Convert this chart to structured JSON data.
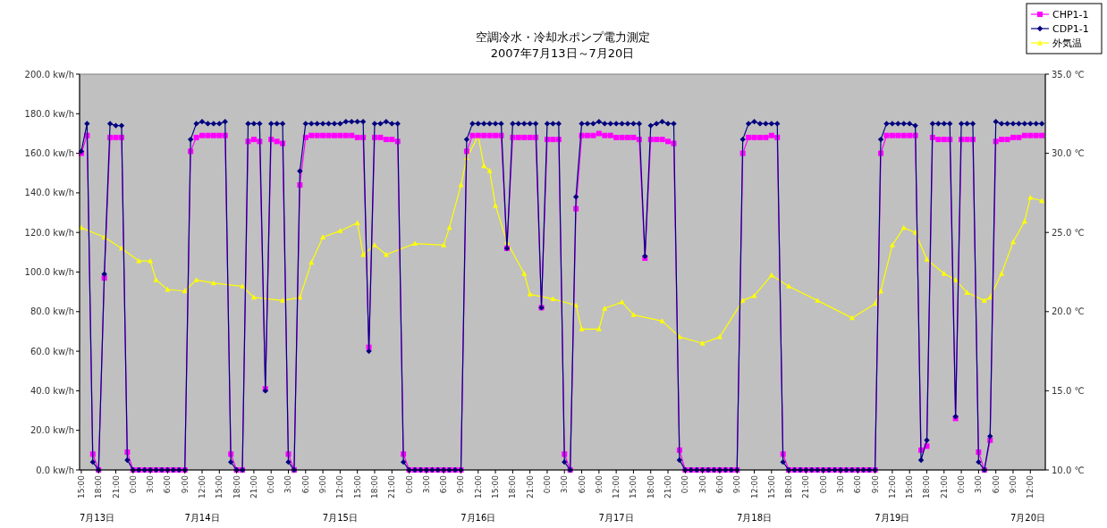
{
  "chart_data": {
    "type": "line",
    "title": "空調冷水・冷却水ポンプ電力測定",
    "subtitle": "2007年7月13日～7月20日",
    "legend": "top right",
    "x": [
      "2007-07-13T15:00",
      "2007-07-13T16:00",
      "2007-07-13T17:00",
      "2007-07-13T18:00",
      "2007-07-13T19:00",
      "2007-07-13T20:00",
      "2007-07-13T21:00",
      "2007-07-13T22:00",
      "2007-07-13T23:00",
      "2007-07-14T00:00",
      "2007-07-14T01:00",
      "2007-07-14T02:00",
      "2007-07-14T03:00",
      "2007-07-14T04:00",
      "2007-07-14T05:00",
      "2007-07-14T06:00",
      "2007-07-14T07:00",
      "2007-07-14T08:00",
      "2007-07-14T09:00",
      "2007-07-14T10:00",
      "2007-07-14T11:00",
      "2007-07-14T12:00",
      "2007-07-14T13:00",
      "2007-07-14T14:00",
      "2007-07-14T15:00",
      "2007-07-14T16:00",
      "2007-07-14T17:00",
      "2007-07-14T18:00",
      "2007-07-14T19:00",
      "2007-07-14T20:00",
      "2007-07-14T21:00",
      "2007-07-14T22:00",
      "2007-07-14T23:00",
      "2007-07-15T00:00",
      "2007-07-15T01:00",
      "2007-07-15T02:00",
      "2007-07-15T03:00",
      "2007-07-15T04:00",
      "2007-07-15T05:00",
      "2007-07-15T06:00",
      "2007-07-15T07:00",
      "2007-07-15T08:00",
      "2007-07-15T09:00",
      "2007-07-15T10:00",
      "2007-07-15T11:00",
      "2007-07-15T12:00",
      "2007-07-15T13:00",
      "2007-07-15T14:00",
      "2007-07-15T15:00",
      "2007-07-15T16:00",
      "2007-07-15T17:00",
      "2007-07-15T18:00",
      "2007-07-15T19:00",
      "2007-07-15T20:00",
      "2007-07-15T21:00",
      "2007-07-15T22:00",
      "2007-07-15T23:00",
      "2007-07-16T00:00",
      "2007-07-16T01:00",
      "2007-07-16T02:00",
      "2007-07-16T03:00",
      "2007-07-16T04:00",
      "2007-07-16T05:00",
      "2007-07-16T06:00",
      "2007-07-16T07:00",
      "2007-07-16T08:00",
      "2007-07-16T09:00",
      "2007-07-16T10:00",
      "2007-07-16T11:00",
      "2007-07-16T12:00",
      "2007-07-16T13:00",
      "2007-07-16T14:00",
      "2007-07-16T15:00",
      "2007-07-16T16:00",
      "2007-07-16T17:00",
      "2007-07-16T18:00",
      "2007-07-16T19:00",
      "2007-07-16T20:00",
      "2007-07-16T21:00",
      "2007-07-16T22:00",
      "2007-07-16T23:00",
      "2007-07-17T00:00",
      "2007-07-17T01:00",
      "2007-07-17T02:00",
      "2007-07-17T03:00",
      "2007-07-17T04:00",
      "2007-07-17T05:00",
      "2007-07-17T06:00",
      "2007-07-17T07:00",
      "2007-07-17T08:00",
      "2007-07-17T09:00",
      "2007-07-17T10:00",
      "2007-07-17T11:00",
      "2007-07-17T12:00",
      "2007-07-17T13:00",
      "2007-07-17T14:00",
      "2007-07-17T15:00",
      "2007-07-17T16:00",
      "2007-07-17T17:00",
      "2007-07-17T18:00",
      "2007-07-17T19:00",
      "2007-07-17T20:00",
      "2007-07-17T21:00",
      "2007-07-17T22:00",
      "2007-07-17T23:00",
      "2007-07-18T00:00",
      "2007-07-18T01:00",
      "2007-07-18T02:00",
      "2007-07-18T03:00",
      "2007-07-18T04:00",
      "2007-07-18T05:00",
      "2007-07-18T06:00",
      "2007-07-18T07:00",
      "2007-07-18T08:00",
      "2007-07-18T09:00",
      "2007-07-18T10:00",
      "2007-07-18T11:00",
      "2007-07-18T12:00",
      "2007-07-18T13:00",
      "2007-07-18T14:00",
      "2007-07-18T15:00",
      "2007-07-18T16:00",
      "2007-07-18T17:00",
      "2007-07-18T18:00",
      "2007-07-18T19:00",
      "2007-07-18T20:00",
      "2007-07-18T21:00",
      "2007-07-18T22:00",
      "2007-07-18T23:00",
      "2007-07-19T00:00",
      "2007-07-19T01:00",
      "2007-07-19T02:00",
      "2007-07-19T03:00",
      "2007-07-19T04:00",
      "2007-07-19T05:00",
      "2007-07-19T06:00",
      "2007-07-19T07:00",
      "2007-07-19T08:00",
      "2007-07-19T09:00",
      "2007-07-19T10:00",
      "2007-07-19T11:00",
      "2007-07-19T12:00",
      "2007-07-19T13:00",
      "2007-07-19T14:00",
      "2007-07-19T15:00",
      "2007-07-19T16:00",
      "2007-07-19T17:00",
      "2007-07-19T18:00",
      "2007-07-19T19:00",
      "2007-07-19T20:00",
      "2007-07-19T21:00",
      "2007-07-19T22:00",
      "2007-07-19T23:00",
      "2007-07-20T00:00",
      "2007-07-20T01:00",
      "2007-07-20T02:00",
      "2007-07-20T03:00",
      "2007-07-20T04:00",
      "2007-07-20T05:00",
      "2007-07-20T06:00",
      "2007-07-20T07:00",
      "2007-07-20T08:00",
      "2007-07-20T09:00",
      "2007-07-20T10:00",
      "2007-07-20T11:00",
      "2007-07-20T12:00",
      "2007-07-20T13:00",
      "2007-07-20T14:00"
    ],
    "series": [
      {
        "name": "CHP1-1",
        "color": "#ff00ff",
        "marker": "square",
        "values": [
          160,
          169,
          8,
          0,
          97,
          168,
          168,
          168,
          9,
          0,
          0,
          0,
          0,
          0,
          0,
          0,
          0,
          0,
          0,
          161,
          168,
          169,
          169,
          169,
          169,
          169,
          8,
          0,
          0,
          166,
          167,
          166,
          41,
          167,
          166,
          165,
          8,
          0,
          144,
          168,
          169,
          169,
          169,
          169,
          169,
          169,
          169,
          169,
          168,
          168,
          62,
          168,
          168,
          167,
          167,
          166,
          8,
          0,
          0,
          0,
          0,
          0,
          0,
          0,
          0,
          0,
          0,
          161,
          169,
          169,
          169,
          169,
          169,
          169,
          112,
          168,
          168,
          168,
          168,
          168,
          82,
          167,
          167,
          167,
          8,
          0,
          132,
          169,
          169,
          169,
          170,
          169,
          169,
          168,
          168,
          168,
          168,
          167,
          107,
          167,
          167,
          167,
          166,
          165,
          10,
          0,
          0,
          0,
          0,
          0,
          0,
          0,
          0,
          0,
          0,
          160,
          168,
          168,
          168,
          168,
          169,
          168,
          8,
          0,
          0,
          0,
          0,
          0,
          0,
          0,
          0,
          0,
          0,
          0,
          0,
          0,
          0,
          0,
          0,
          160,
          169,
          169,
          169,
          169,
          169,
          169,
          10,
          12,
          168,
          167,
          167,
          167,
          26,
          167,
          167,
          167,
          9,
          0,
          15,
          166,
          167,
          167,
          168,
          168,
          169,
          169,
          169,
          169
        ]
      },
      {
        "name": "CDP1-1",
        "color": "#000080",
        "marker": "diamond",
        "values": [
          161,
          175,
          4,
          0,
          99,
          175,
          174,
          174,
          5,
          0,
          0,
          0,
          0,
          0,
          0,
          0,
          0,
          0,
          0,
          167,
          175,
          176,
          175,
          175,
          175,
          176,
          4,
          0,
          0,
          175,
          175,
          175,
          40,
          175,
          175,
          175,
          4,
          0,
          151,
          175,
          175,
          175,
          175,
          175,
          175,
          175,
          176,
          176,
          176,
          176,
          60,
          175,
          175,
          176,
          175,
          175,
          4,
          0,
          0,
          0,
          0,
          0,
          0,
          0,
          0,
          0,
          0,
          167,
          175,
          175,
          175,
          175,
          175,
          175,
          112,
          175,
          175,
          175,
          175,
          175,
          82,
          175,
          175,
          175,
          4,
          0,
          138,
          175,
          175,
          175,
          176,
          175,
          175,
          175,
          175,
          175,
          175,
          175,
          108,
          174,
          175,
          176,
          175,
          175,
          5,
          0,
          0,
          0,
          0,
          0,
          0,
          0,
          0,
          0,
          0,
          167,
          175,
          176,
          175,
          175,
          175,
          175,
          4,
          0,
          0,
          0,
          0,
          0,
          0,
          0,
          0,
          0,
          0,
          0,
          0,
          0,
          0,
          0,
          0,
          167,
          175,
          175,
          175,
          175,
          175,
          174,
          5,
          15,
          175,
          175,
          175,
          175,
          27,
          175,
          175,
          175,
          4,
          0,
          17,
          176,
          175,
          175,
          175,
          175,
          175,
          175,
          175,
          175
        ]
      },
      {
        "name": "外気温",
        "color": "#ffff00",
        "marker": "triangle",
        "axis": "y2",
        "x": [
          "2007-07-13T15:00",
          "2007-07-13T19:00",
          "2007-07-13T22:00",
          "2007-07-14T01:00",
          "2007-07-14T03:00",
          "2007-07-14T04:00",
          "2007-07-14T06:00",
          "2007-07-14T09:00",
          "2007-07-14T11:00",
          "2007-07-14T14:00",
          "2007-07-14T19:00",
          "2007-07-14T21:00",
          "2007-07-15T02:00",
          "2007-07-15T05:00",
          "2007-07-15T07:00",
          "2007-07-15T09:00",
          "2007-07-15T12:00",
          "2007-07-15T15:00",
          "2007-07-15T16:00",
          "2007-07-15T18:00",
          "2007-07-15T20:00",
          "2007-07-16T01:00",
          "2007-07-16T06:00",
          "2007-07-16T07:00",
          "2007-07-16T09:00",
          "2007-07-16T10:00",
          "2007-07-16T12:00",
          "2007-07-16T13:00",
          "2007-07-16T14:00",
          "2007-07-16T15:00",
          "2007-07-16T17:00",
          "2007-07-16T20:00",
          "2007-07-16T21:00",
          "2007-07-17T01:00",
          "2007-07-17T05:00",
          "2007-07-17T06:00",
          "2007-07-17T09:00",
          "2007-07-17T10:00",
          "2007-07-17T13:00",
          "2007-07-17T15:00",
          "2007-07-17T20:00",
          "2007-07-17T23:00",
          "2007-07-18T03:00",
          "2007-07-18T06:00",
          "2007-07-18T10:00",
          "2007-07-18T12:00",
          "2007-07-18T15:00",
          "2007-07-18T18:00",
          "2007-07-18T23:00",
          "2007-07-19T05:00",
          "2007-07-19T09:00",
          "2007-07-19T10:00",
          "2007-07-19T12:00",
          "2007-07-19T14:00",
          "2007-07-19T16:00",
          "2007-07-19T18:00",
          "2007-07-19T21:00",
          "2007-07-19T23:00",
          "2007-07-20T01:00",
          "2007-07-20T04:00",
          "2007-07-20T05:00",
          "2007-07-20T07:00",
          "2007-07-20T09:00",
          "2007-07-20T11:00",
          "2007-07-20T12:00",
          "2007-07-20T14:00"
        ],
        "values": [
          25.3,
          24.7,
          24.0,
          23.2,
          23.2,
          22.0,
          21.4,
          21.3,
          22.0,
          21.8,
          21.6,
          20.9,
          20.7,
          20.9,
          23.1,
          24.7,
          25.1,
          25.6,
          23.6,
          24.2,
          23.6,
          24.3,
          24.2,
          25.3,
          28.0,
          29.7,
          31.1,
          29.2,
          28.9,
          26.7,
          24.4,
          22.4,
          21.1,
          20.8,
          20.4,
          18.9,
          18.9,
          20.2,
          20.6,
          19.8,
          19.4,
          18.4,
          18.0,
          18.4,
          20.7,
          21.0,
          22.3,
          21.6,
          20.7,
          19.6,
          20.5,
          21.3,
          24.2,
          25.3,
          25.0,
          23.3,
          22.4,
          22.0,
          21.2,
          20.7,
          20.9,
          22.4,
          24.4,
          25.7,
          27.2,
          27.0
        ]
      }
    ],
    "xlim": [
      "2007-07-13T14:42",
      "2007-07-20T14:36"
    ],
    "xticks": [
      {
        "value": "2007-07-13T15:00",
        "label": "15:00"
      },
      {
        "value": "2007-07-13T18:00",
        "label": "18:00"
      },
      {
        "value": "2007-07-13T21:00",
        "label": "21:00"
      },
      {
        "value": "2007-07-14T00:00",
        "label": "0:00"
      },
      {
        "value": "2007-07-14T03:00",
        "label": "3:00"
      },
      {
        "value": "2007-07-14T06:00",
        "label": "6:00"
      },
      {
        "value": "2007-07-14T09:00",
        "label": "9:00"
      },
      {
        "value": "2007-07-14T12:00",
        "label": "12:00"
      },
      {
        "value": "2007-07-14T15:00",
        "label": "15:00"
      },
      {
        "value": "2007-07-14T18:00",
        "label": "18:00"
      },
      {
        "value": "2007-07-14T21:00",
        "label": "21:00"
      },
      {
        "value": "2007-07-15T00:00",
        "label": "0:00"
      },
      {
        "value": "2007-07-15T03:00",
        "label": "3:00"
      },
      {
        "value": "2007-07-15T06:00",
        "label": "6:00"
      },
      {
        "value": "2007-07-15T09:00",
        "label": "9:00"
      },
      {
        "value": "2007-07-15T12:00",
        "label": "12:00"
      },
      {
        "value": "2007-07-15T15:00",
        "label": "15:00"
      },
      {
        "value": "2007-07-15T18:00",
        "label": "18:00"
      },
      {
        "value": "2007-07-15T21:00",
        "label": "21:00"
      },
      {
        "value": "2007-07-16T00:00",
        "label": "0:00"
      },
      {
        "value": "2007-07-16T03:00",
        "label": "3:00"
      },
      {
        "value": "2007-07-16T06:00",
        "label": "6:00"
      },
      {
        "value": "2007-07-16T09:00",
        "label": "9:00"
      },
      {
        "value": "2007-07-16T12:00",
        "label": "12:00"
      },
      {
        "value": "2007-07-16T15:00",
        "label": "15:00"
      },
      {
        "value": "2007-07-16T18:00",
        "label": "18:00"
      },
      {
        "value": "2007-07-16T21:00",
        "label": "21:00"
      },
      {
        "value": "2007-07-17T00:00",
        "label": "0:00"
      },
      {
        "value": "2007-07-17T03:00",
        "label": "3:00"
      },
      {
        "value": "2007-07-17T06:00",
        "label": "6:00"
      },
      {
        "value": "2007-07-17T09:00",
        "label": "9:00"
      },
      {
        "value": "2007-07-17T12:00",
        "label": "12:00"
      },
      {
        "value": "2007-07-17T15:00",
        "label": "15:00"
      },
      {
        "value": "2007-07-17T18:00",
        "label": "18:00"
      },
      {
        "value": "2007-07-17T21:00",
        "label": "21:00"
      },
      {
        "value": "2007-07-18T00:00",
        "label": "0:00"
      },
      {
        "value": "2007-07-18T03:00",
        "label": "3:00"
      },
      {
        "value": "2007-07-18T06:00",
        "label": "6:00"
      },
      {
        "value": "2007-07-18T09:00",
        "label": "9:00"
      },
      {
        "value": "2007-07-18T12:00",
        "label": "12:00"
      },
      {
        "value": "2007-07-18T15:00",
        "label": "15:00"
      },
      {
        "value": "2007-07-18T18:00",
        "label": "18:00"
      },
      {
        "value": "2007-07-18T21:00",
        "label": "21:00"
      },
      {
        "value": "2007-07-19T00:00",
        "label": "0:00"
      },
      {
        "value": "2007-07-19T03:00",
        "label": "3:00"
      },
      {
        "value": "2007-07-19T06:00",
        "label": "6:00"
      },
      {
        "value": "2007-07-19T09:00",
        "label": "9:00"
      },
      {
        "value": "2007-07-19T12:00",
        "label": "12:00"
      },
      {
        "value": "2007-07-19T15:00",
        "label": "15:00"
      },
      {
        "value": "2007-07-19T18:00",
        "label": "18:00"
      },
      {
        "value": "2007-07-19T21:00",
        "label": "21:00"
      },
      {
        "value": "2007-07-20T00:00",
        "label": "0:00"
      },
      {
        "value": "2007-07-20T03:00",
        "label": "3:00"
      },
      {
        "value": "2007-07-20T06:00",
        "label": "6:00"
      },
      {
        "value": "2007-07-20T09:00",
        "label": "9:00"
      },
      {
        "value": "2007-07-20T12:00",
        "label": "12:00"
      }
    ],
    "ylim": [
      0,
      200
    ],
    "yticks": [
      {
        "value": 0,
        "label": "0.0 kw/h"
      },
      {
        "value": 20,
        "label": "20.0 kw/h"
      },
      {
        "value": 40,
        "label": "40.0 kw/h"
      },
      {
        "value": 60,
        "label": "60.0 kw/h"
      },
      {
        "value": 80,
        "label": "80.0 kw/h"
      },
      {
        "value": 100,
        "label": "100.0 kw/h"
      },
      {
        "value": 120,
        "label": "120.0 kw/h"
      },
      {
        "value": 140,
        "label": "140.0 kw/h"
      },
      {
        "value": 160,
        "label": "160.0 kw/h"
      },
      {
        "value": 180,
        "label": "180.0 kw/h"
      },
      {
        "value": 200,
        "label": "200.0 kw/h"
      }
    ],
    "y2lim": [
      10,
      35
    ],
    "y2ticks": [
      {
        "value": 10,
        "label": "10.0 ℃"
      },
      {
        "value": 15,
        "label": "15.0 ℃"
      },
      {
        "value": 20,
        "label": "20.0 ℃"
      },
      {
        "value": 25,
        "label": "25.0 ℃"
      },
      {
        "value": 30,
        "label": "30.0 ℃"
      },
      {
        "value": 35,
        "label": "35.0 ℃"
      }
    ],
    "annotations": [
      "7月13日",
      "7月14日",
      "7月15日",
      "7月16日",
      "7月17日",
      "7月18日",
      "7月19日",
      "7月20日"
    ]
  }
}
